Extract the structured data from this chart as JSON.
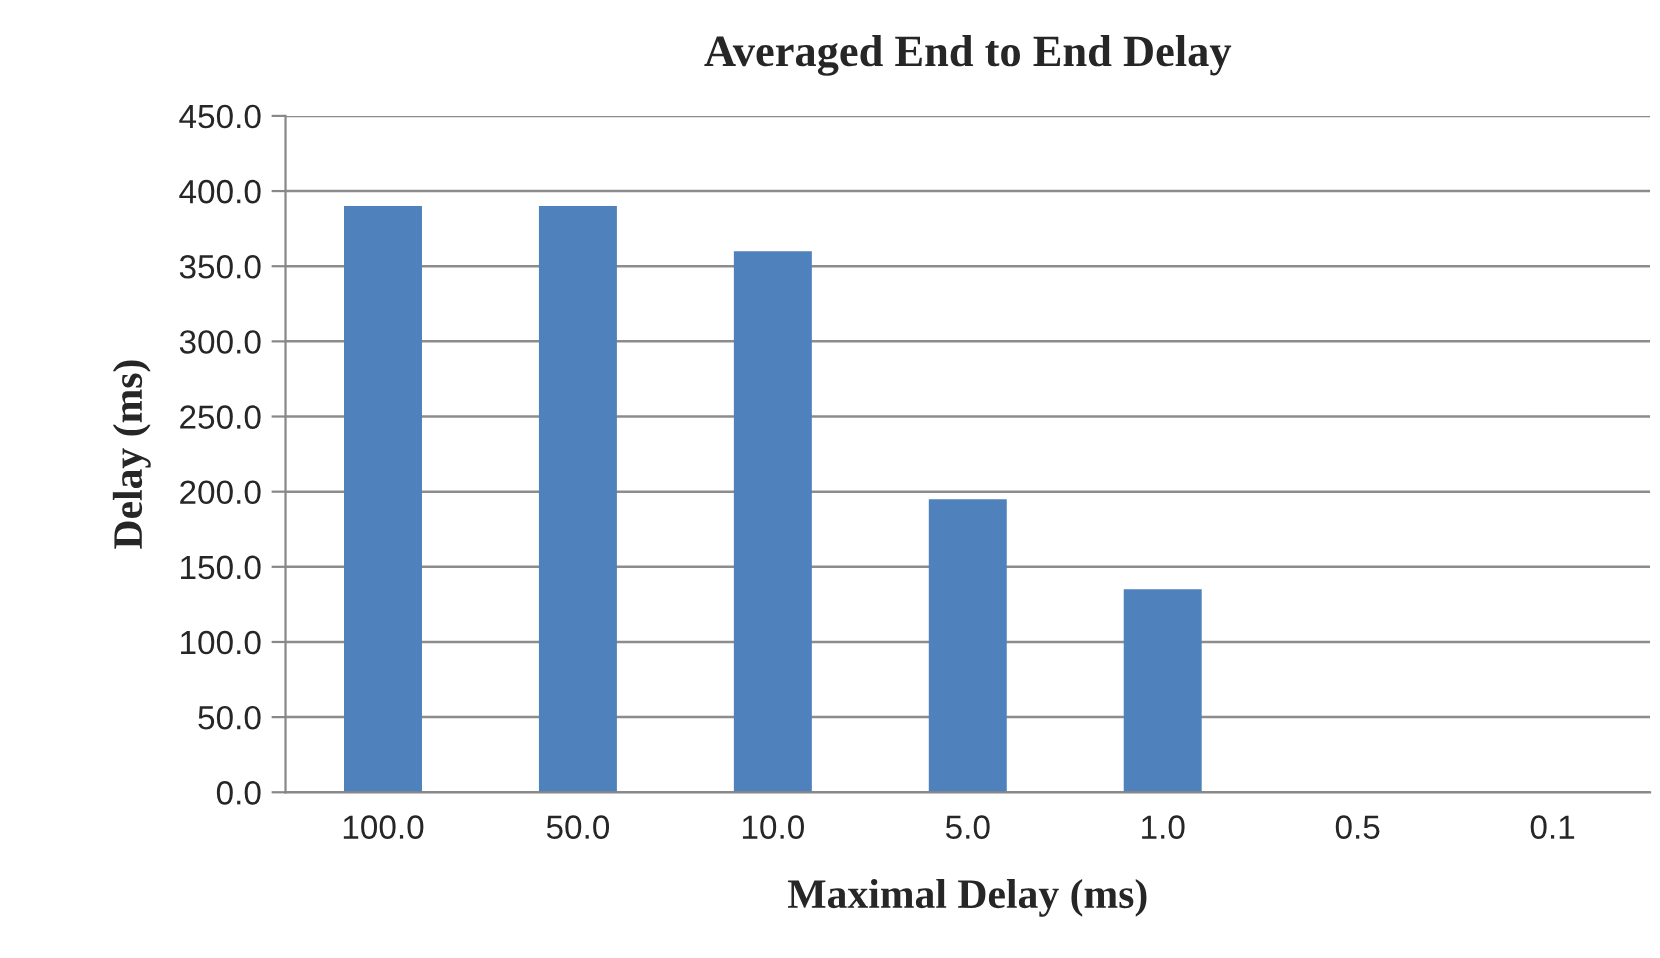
{
  "chart_data": {
    "type": "bar",
    "title": "Averaged End to End Delay",
    "xlabel": "Maximal Delay (ms)",
    "ylabel": "Delay (ms)",
    "categories": [
      "100.0",
      "50.0",
      "10.0",
      "5.0",
      "1.0",
      "0.5",
      "0.1"
    ],
    "values": [
      390,
      390,
      360,
      195,
      135,
      0,
      0
    ],
    "color": "#4f81bd",
    "ylim": [
      0,
      450
    ],
    "yticks": [
      {
        "value": 0,
        "label": "0.0"
      },
      {
        "value": 50,
        "label": "50.0"
      },
      {
        "value": 100,
        "label": "100.0"
      },
      {
        "value": 150,
        "label": "150.0"
      },
      {
        "value": 200,
        "label": "200.0"
      },
      {
        "value": 250,
        "label": "250.0"
      },
      {
        "value": 300,
        "label": "300.0"
      },
      {
        "value": 350,
        "label": "350.0"
      },
      {
        "value": 400,
        "label": "400.0"
      },
      {
        "value": 450,
        "label": "450.0"
      }
    ],
    "grid": "y"
  }
}
